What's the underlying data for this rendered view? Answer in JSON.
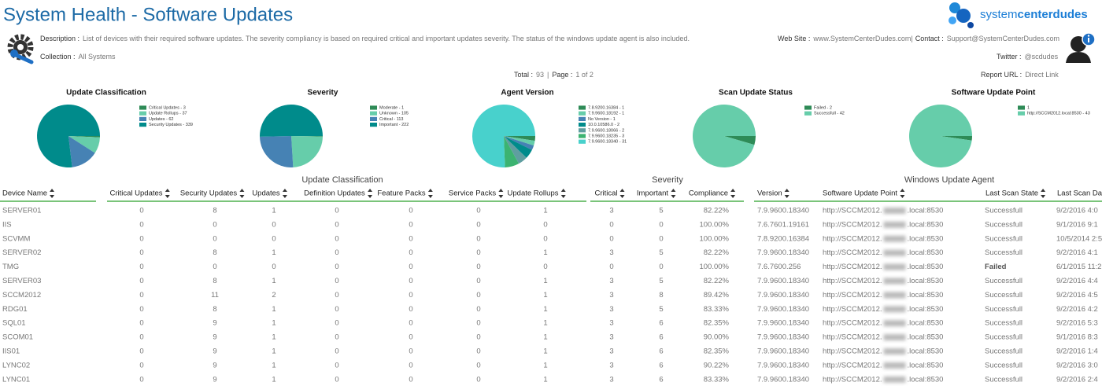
{
  "header": {
    "title": "System Health - Software Updates",
    "logo": [
      "system",
      "center",
      "dudes"
    ],
    "description_label": "Description :",
    "description": "List of devices with their required software updates. The severity compliancy is based on required critical and important updates severity. The status of the windows update agent is also included.",
    "collection_label": "Collection :",
    "collection": "All Systems",
    "website_label": "Web Site :",
    "website": "www.SystemCenterDudes.com|",
    "contact_label": "Contact :",
    "contact": "Support@SystemCenterDudes.com",
    "twitter_label": "Twitter :",
    "twitter": "@scdudes",
    "total_label": "Total :",
    "total": "93",
    "separator": "|",
    "page_label": "Page :",
    "page": "1 of 2",
    "report_url_label": "Report URL :",
    "report_url": "Direct Link"
  },
  "chart_data": [
    {
      "type": "pie",
      "title": "Update Classification",
      "labels": [
        "Critical Updates - 3",
        "Update Rollups - 37",
        "Updates - 62",
        "Security Updates - 339"
      ],
      "values": [
        3,
        37,
        62,
        339
      ],
      "colors": [
        "#2e8b57",
        "#66cdaa",
        "#4682b4",
        "#008b8b"
      ]
    },
    {
      "type": "pie",
      "title": "Severity",
      "labels": [
        "Moderate - 1",
        "Unknown - 105",
        "Critical - 113",
        "Important - 222"
      ],
      "values": [
        1,
        105,
        113,
        222
      ],
      "colors": [
        "#2e8b57",
        "#66cdaa",
        "#4682b4",
        "#008b8b"
      ]
    },
    {
      "type": "pie",
      "title": "Agent Version",
      "labels": [
        "7.8.9200.16384 - 1",
        "7.9.9600.18192 - 1",
        "No Version - 1",
        "10.0.10586.0 - 2",
        "7.9.9600.18066 - 2",
        "7.9.9600.18235 - 3",
        "7.9.9600.18340 - 31"
      ],
      "values": [
        1,
        1,
        1,
        2,
        2,
        3,
        31
      ],
      "colors": [
        "#2e8b57",
        "#66cdaa",
        "#4682b4",
        "#008b8b",
        "#5f9ea0",
        "#3cb371",
        "#48d1cc"
      ]
    },
    {
      "type": "pie",
      "title": "Scan Update Status",
      "labels": [
        "Failed - 2",
        "Successfull - 42"
      ],
      "values": [
        2,
        42
      ],
      "colors": [
        "#2e8b57",
        "#66cdaa"
      ]
    },
    {
      "type": "pie",
      "title": "Software Update Point",
      "labels": [
        "1",
        "http://SCCM2012.local:8530 - 43"
      ],
      "values": [
        1,
        43
      ],
      "colors": [
        "#2e8b57",
        "#66cdaa"
      ]
    }
  ],
  "table": {
    "groups": [
      "Update Classification",
      "Severity",
      "Windows Update Agent"
    ],
    "columns": [
      "Device Name",
      "Critical Updates",
      "Security Updates",
      "Updates",
      "Definition Updates",
      "Feature Packs",
      "Service Packs",
      "Update Rollups",
      "Critical",
      "Important",
      "Compliance",
      "Version",
      "Software Update Point",
      "Last Scan State",
      "Last Scan Dat"
    ],
    "rows": [
      [
        "SERVER01",
        "0",
        "8",
        "1",
        "0",
        "0",
        "0",
        "1",
        "3",
        "5",
        "82.22%",
        "7.9.9600.18340",
        "http://SCCM2012.",
        ".local:8530",
        "Successfull",
        "9/2/2016 4:0"
      ],
      [
        "IIS",
        "0",
        "0",
        "0",
        "0",
        "0",
        "0",
        "0",
        "0",
        "0",
        "100.00%",
        "7.6.7601.19161",
        "http://SCCM2012.",
        ".local:8530",
        "Successfull",
        "9/1/2016 9:1"
      ],
      [
        "SCVMM",
        "0",
        "0",
        "0",
        "0",
        "0",
        "0",
        "0",
        "0",
        "0",
        "100.00%",
        "7.8.9200.16384",
        "http://SCCM2012.",
        ".local:8530",
        "Successfull",
        "10/5/2014 2:5"
      ],
      [
        "SERVER02",
        "0",
        "8",
        "1",
        "0",
        "0",
        "0",
        "1",
        "3",
        "5",
        "82.22%",
        "7.9.9600.18340",
        "http://SCCM2012.",
        ".local:8530",
        "Successfull",
        "9/2/2016 4:1"
      ],
      [
        "TMG",
        "0",
        "0",
        "0",
        "0",
        "0",
        "0",
        "0",
        "0",
        "0",
        "100.00%",
        "7.6.7600.256",
        "http://SCCM2012.",
        ".local:8530",
        "Failed",
        "6/1/2015 11:2"
      ],
      [
        "SERVER03",
        "0",
        "8",
        "1",
        "0",
        "0",
        "0",
        "1",
        "3",
        "5",
        "82.22%",
        "7.9.9600.18340",
        "http://SCCM2012.",
        ".local:8530",
        "Successfull",
        "9/2/2016 4:4"
      ],
      [
        "SCCM2012",
        "0",
        "11",
        "2",
        "0",
        "0",
        "0",
        "1",
        "3",
        "8",
        "89.42%",
        "7.9.9600.18340",
        "http://SCCM2012.",
        ".local:8530",
        "Successfull",
        "9/2/2016 4:5"
      ],
      [
        "RDG01",
        "0",
        "8",
        "1",
        "0",
        "0",
        "0",
        "1",
        "3",
        "5",
        "83.33%",
        "7.9.9600.18340",
        "http://SCCM2012.",
        ".local:8530",
        "Successfull",
        "9/2/2016 4:2"
      ],
      [
        "SQL01",
        "0",
        "9",
        "1",
        "0",
        "0",
        "0",
        "1",
        "3",
        "6",
        "82.35%",
        "7.9.9600.18340",
        "http://SCCM2012.",
        ".local:8530",
        "Successfull",
        "9/2/2016 5:3"
      ],
      [
        "SCOM01",
        "0",
        "9",
        "1",
        "0",
        "0",
        "0",
        "1",
        "3",
        "6",
        "90.00%",
        "7.9.9600.18340",
        "http://SCCM2012.",
        ".local:8530",
        "Successfull",
        "9/1/2016 8:3"
      ],
      [
        "IIS01",
        "0",
        "9",
        "1",
        "0",
        "0",
        "0",
        "1",
        "3",
        "6",
        "82.35%",
        "7.9.9600.18340",
        "http://SCCM2012.",
        ".local:8530",
        "Successfull",
        "9/2/2016 1:4"
      ],
      [
        "LYNC02",
        "0",
        "9",
        "1",
        "0",
        "0",
        "0",
        "1",
        "3",
        "6",
        "90.22%",
        "7.9.9600.18340",
        "http://SCCM2012.",
        ".local:8530",
        "Successfull",
        "9/2/2016 3:0"
      ],
      [
        "LYNC01",
        "0",
        "9",
        "1",
        "0",
        "0",
        "0",
        "1",
        "3",
        "6",
        "83.33%",
        "7.9.9600.18340",
        "http://SCCM2012.",
        ".local:8530",
        "Successfull",
        "9/2/2016 2:4"
      ]
    ]
  }
}
